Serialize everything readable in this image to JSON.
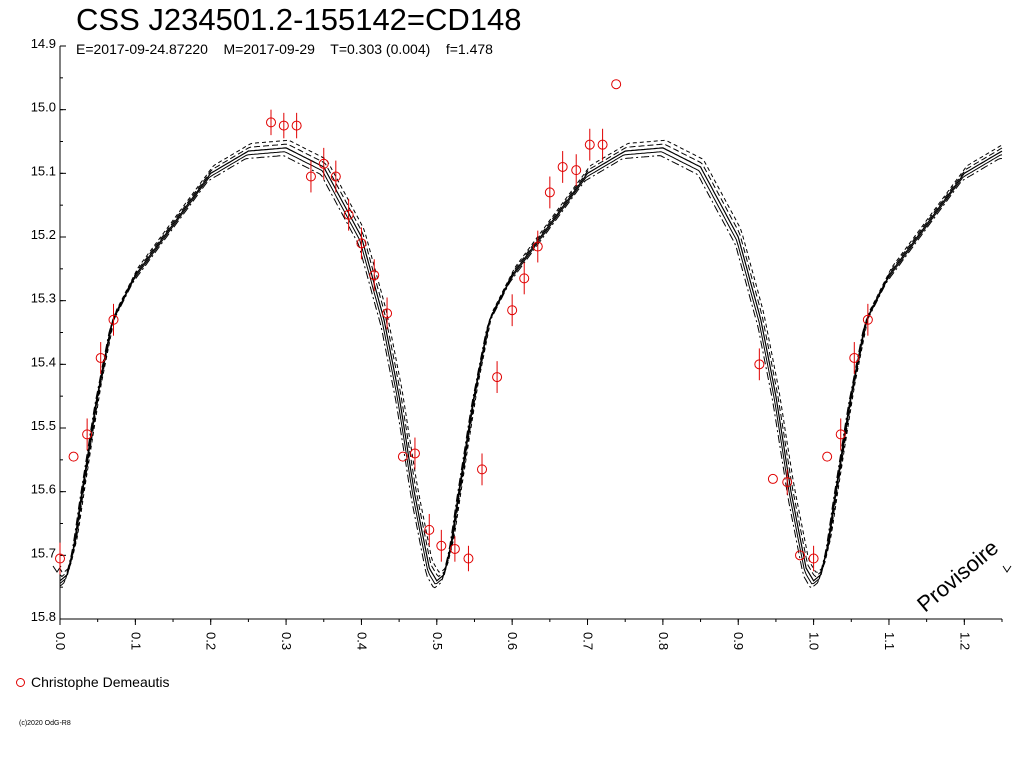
{
  "title": "CSS J234501.2-155142=CD148",
  "subtitle": "E=2017-09-24.87220    M=2017-09-29    T=0.303 (0.004)    f=1.478",
  "watermark": "Provisoire",
  "legend_label": "Christophe Demeautis",
  "copyright": "(c)2020 OdG-R8",
  "colors": {
    "observations": "#e00000",
    "model": "#000000"
  },
  "chart_data": {
    "type": "scatter",
    "xlim": [
      0,
      1.25
    ],
    "ylim": [
      15.8,
      14.9
    ],
    "y_reversed": true,
    "xticks": [
      "0.0",
      "0.1",
      "0.2",
      "0.3",
      "0.4",
      "0.5",
      "0.6",
      "0.7",
      "0.8",
      "0.9",
      "1.0",
      "1.1",
      "1.2"
    ],
    "yticks": [
      "14.9",
      "15.0",
      "15.1",
      "15.2",
      "15.3",
      "15.4",
      "15.5",
      "15.6",
      "15.7",
      "15.8"
    ],
    "grid": false,
    "legend_position": "bottom-left",
    "model_curve": {
      "phase": [
        0.0,
        0.01,
        0.02,
        0.03,
        0.05,
        0.07,
        0.1,
        0.15,
        0.2,
        0.25,
        0.3,
        0.35,
        0.4,
        0.43,
        0.45,
        0.47,
        0.49,
        0.5
      ],
      "magnitude": [
        15.74,
        15.73,
        15.68,
        15.6,
        15.45,
        15.33,
        15.26,
        15.18,
        15.1,
        15.065,
        15.06,
        15.09,
        15.2,
        15.33,
        15.45,
        15.6,
        15.72,
        15.74
      ]
    },
    "series": [
      {
        "name": "Christophe Demeautis",
        "x": [
          0.0,
          0.018,
          0.036,
          0.054,
          0.071,
          0.28,
          0.297,
          0.314,
          0.333,
          0.35,
          0.366,
          0.383,
          0.4,
          0.417,
          0.434,
          0.455,
          0.471,
          0.49,
          0.506,
          0.524,
          0.542,
          0.56,
          0.58,
          0.6,
          0.616,
          0.634,
          0.65,
          0.667,
          0.685,
          0.703,
          0.72,
          0.738,
          0.928,
          0.946,
          0.965,
          0.982,
          1.0,
          1.018,
          1.036,
          1.054,
          1.072
        ],
        "y": [
          15.705,
          15.545,
          15.51,
          15.39,
          15.33,
          15.02,
          15.025,
          15.025,
          15.105,
          15.085,
          15.105,
          15.165,
          15.21,
          15.26,
          15.32,
          15.545,
          15.54,
          15.66,
          15.685,
          15.69,
          15.705,
          15.565,
          15.42,
          15.315,
          15.265,
          15.215,
          15.13,
          15.09,
          15.095,
          15.055,
          15.055,
          14.96,
          15.4,
          15.58,
          15.585,
          15.7,
          15.705,
          15.545,
          15.51,
          15.39,
          15.33
        ],
        "err": [
          0.025,
          0,
          0.025,
          0.025,
          0.025,
          0.02,
          0.02,
          0.02,
          0.025,
          0.025,
          0.025,
          0.025,
          0.025,
          0.025,
          0.025,
          0,
          0.025,
          0.025,
          0.025,
          0.02,
          0.02,
          0.025,
          0.025,
          0.025,
          0.025,
          0.025,
          0.025,
          0.025,
          0.025,
          0.025,
          0.025,
          0,
          0.025,
          0,
          0.02,
          0,
          0.02,
          0,
          0.025,
          0.025,
          0.025
        ]
      }
    ]
  }
}
